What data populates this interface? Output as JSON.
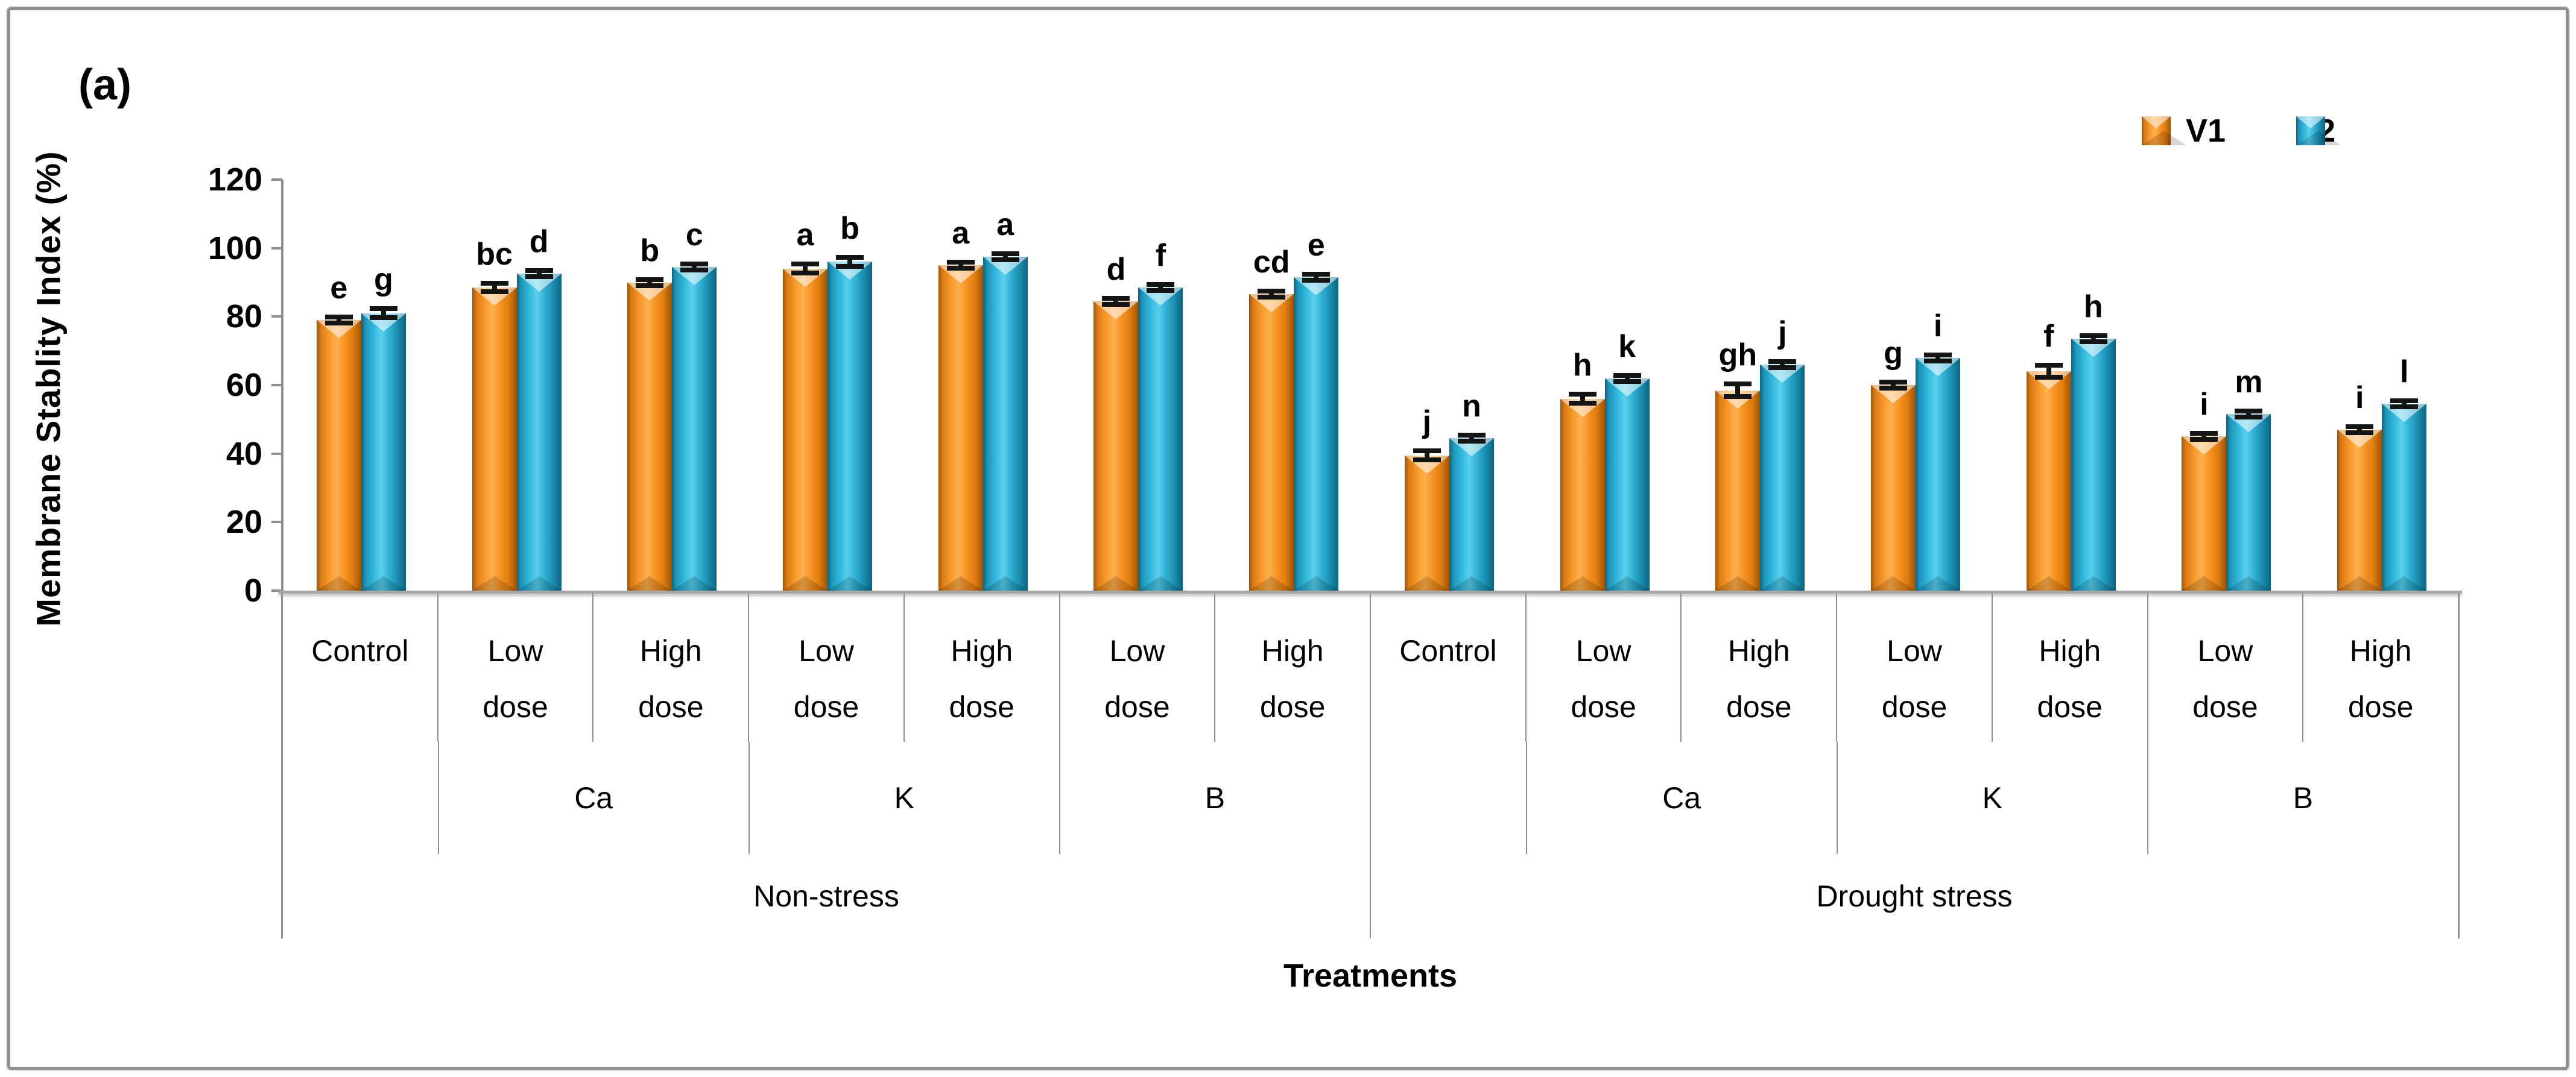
{
  "figure": {
    "panel_label": "(a)",
    "background": "#ffffff",
    "border_color": "#8f8f8f"
  },
  "chart_data": {
    "type": "bar",
    "panel_label": "(a)",
    "title": "",
    "ylabel": "Membrane Stablity Index (%)",
    "xlabel": "Treatments",
    "ylim": [
      0,
      120
    ],
    "yticks": [
      0,
      20,
      40,
      60,
      80,
      100,
      120
    ],
    "grid": false,
    "legend_position": "top-right",
    "error_bars": true,
    "series": [
      {
        "name": "V1",
        "color": "#F6921E"
      },
      {
        "name": "V2",
        "color": "#2FB0D4"
      }
    ],
    "stress_sections": [
      {
        "label": "Non-stress",
        "span": 7
      },
      {
        "label": "Drought stress",
        "span": 7
      }
    ],
    "nutrient_groups": [
      {
        "label": "",
        "span": 1
      },
      {
        "label": "Ca",
        "span": 2
      },
      {
        "label": "K",
        "span": 2
      },
      {
        "label": "B",
        "span": 2
      },
      {
        "label": "",
        "span": 1
      },
      {
        "label": "Ca",
        "span": 2
      },
      {
        "label": "K",
        "span": 2
      },
      {
        "label": "B",
        "span": 2
      }
    ],
    "categories": [
      {
        "label_lines": [
          "Control"
        ],
        "section": "Non-stress",
        "nutrient": "",
        "v1": {
          "value": 79,
          "err": 1.5,
          "letter": "e"
        },
        "v2": {
          "value": 81,
          "err": 2,
          "letter": "g"
        }
      },
      {
        "label_lines": [
          "Low",
          "dose"
        ],
        "section": "Non-stress",
        "nutrient": "Ca",
        "v1": {
          "value": 88.5,
          "err": 2,
          "letter": "bc"
        },
        "v2": {
          "value": 92.5,
          "err": 1.5,
          "letter": "d"
        }
      },
      {
        "label_lines": [
          "High",
          "dose"
        ],
        "section": "Non-stress",
        "nutrient": "Ca",
        "v1": {
          "value": 90,
          "err": 1.5,
          "letter": "b"
        },
        "v2": {
          "value": 94.5,
          "err": 1,
          "letter": "c"
        }
      },
      {
        "label_lines": [
          "Low",
          "dose"
        ],
        "section": "Non-stress",
        "nutrient": "K",
        "v1": {
          "value": 94,
          "err": 2,
          "letter": "a"
        },
        "v2": {
          "value": 96,
          "err": 2,
          "letter": "b"
        }
      },
      {
        "label_lines": [
          "High",
          "dose"
        ],
        "section": "Non-stress",
        "nutrient": "K",
        "v1": {
          "value": 95,
          "err": 1.5,
          "letter": "a"
        },
        "v2": {
          "value": 97.5,
          "err": 1.5,
          "letter": "a"
        }
      },
      {
        "label_lines": [
          "Low",
          "dose"
        ],
        "section": "Non-stress",
        "nutrient": "B",
        "v1": {
          "value": 84.5,
          "err": 1.5,
          "letter": "d"
        },
        "v2": {
          "value": 88.5,
          "err": 1.5,
          "letter": "f"
        }
      },
      {
        "label_lines": [
          "High",
          "dose"
        ],
        "section": "Non-stress",
        "nutrient": "B",
        "v1": {
          "value": 86.5,
          "err": 1.5,
          "letter": "cd"
        },
        "v2": {
          "value": 91.5,
          "err": 1.5,
          "letter": "e"
        }
      },
      {
        "label_lines": [
          "Control"
        ],
        "section": "Drought stress",
        "nutrient": "",
        "v1": {
          "value": 39.5,
          "err": 2,
          "letter": "j"
        },
        "v2": {
          "value": 44.5,
          "err": 1.5,
          "letter": "n"
        }
      },
      {
        "label_lines": [
          "Low",
          "dose"
        ],
        "section": "Drought stress",
        "nutrient": "Ca",
        "v1": {
          "value": 56,
          "err": 2,
          "letter": "h"
        },
        "v2": {
          "value": 62,
          "err": 1.5,
          "letter": "k"
        }
      },
      {
        "label_lines": [
          "High",
          "dose"
        ],
        "section": "Drought stress",
        "nutrient": "Ca",
        "v1": {
          "value": 58.5,
          "err": 2.5,
          "letter": "gh"
        },
        "v2": {
          "value": 66,
          "err": 1.5,
          "letter": "j"
        }
      },
      {
        "label_lines": [
          "Low",
          "dose"
        ],
        "section": "Drought stress",
        "nutrient": "K",
        "v1": {
          "value": 60,
          "err": 1.5,
          "letter": "g"
        },
        "v2": {
          "value": 68,
          "err": 0.4,
          "letter": "i"
        }
      },
      {
        "label_lines": [
          "High",
          "dose"
        ],
        "section": "Drought stress",
        "nutrient": "K",
        "v1": {
          "value": 64,
          "err": 2.5,
          "letter": "f"
        },
        "v2": {
          "value": 73.5,
          "err": 1.5,
          "letter": "h"
        }
      },
      {
        "label_lines": [
          "Low",
          "dose"
        ],
        "section": "Drought stress",
        "nutrient": "B",
        "v1": {
          "value": 45,
          "err": 1.5,
          "letter": "i"
        },
        "v2": {
          "value": 51.5,
          "err": 0.4,
          "letter": "m"
        }
      },
      {
        "label_lines": [
          "High",
          "dose"
        ],
        "section": "Drought stress",
        "nutrient": "B",
        "v1": {
          "value": 47,
          "err": 1.5,
          "letter": "i"
        },
        "v2": {
          "value": 54.5,
          "err": 1.5,
          "letter": "l"
        }
      }
    ]
  }
}
